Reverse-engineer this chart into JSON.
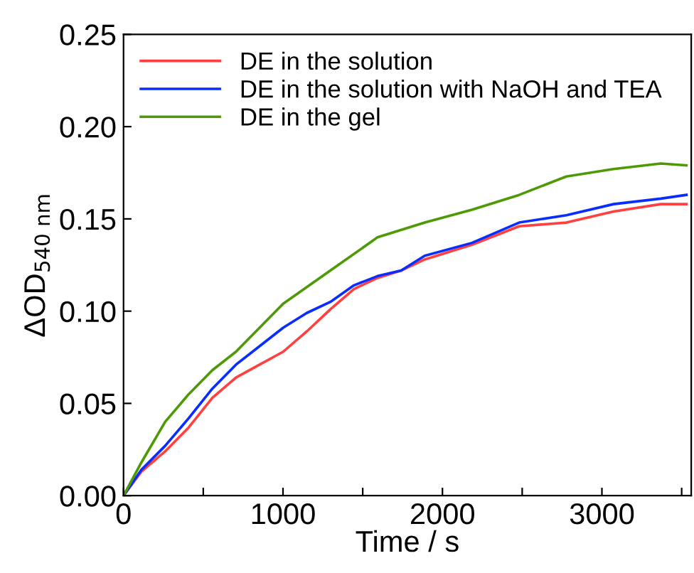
{
  "chart_data": {
    "type": "line",
    "xlabel": "Time / s",
    "ylabel": "ΔOD$_{540 nm}$",
    "xlim": [
      0,
      3560
    ],
    "ylim": [
      0,
      0.25
    ],
    "xticks": [
      0,
      {
        "value": 500,
        "label": null
      },
      1000,
      {
        "value": 1500,
        "label": null
      },
      2000,
      {
        "value": 2500,
        "label": null
      },
      3000,
      {
        "value": 3500,
        "label": null
      }
    ],
    "yticks": [
      {
        "value": 0,
        "label": "0.00"
      },
      0.05,
      {
        "value": 0.1,
        "label": "0.10"
      },
      0.15,
      {
        "value": 0.2,
        "label": "0.20"
      },
      0.25
    ],
    "grid": false,
    "legend": "top left",
    "marker": "none",
    "line_style": "solid",
    "series": [
      {
        "name": "DE in the solution",
        "color": "#ff4040",
        "x": [
          0,
          112,
          261,
          409,
          557,
          705,
          853,
          1001,
          1149,
          1297,
          1445,
          1593,
          1741,
          1889,
          2185,
          2481,
          2777,
          3073,
          3369,
          3530
        ],
        "values": [
          0,
          0.013,
          0.024,
          0.037,
          0.053,
          0.064,
          0.071,
          0.078,
          0.089,
          0.101,
          0.112,
          0.118,
          0.122,
          0.128,
          0.136,
          0.146,
          0.148,
          0.154,
          0.158,
          0.158
        ]
      },
      {
        "name": "DE in the solution with NaOH and TEA",
        "color": "#0a2dff",
        "x": [
          0,
          112,
          261,
          409,
          557,
          705,
          853,
          1001,
          1149,
          1297,
          1445,
          1593,
          1741,
          1889,
          2185,
          2481,
          2777,
          3073,
          3369,
          3530
        ],
        "values": [
          0,
          0.014,
          0.027,
          0.042,
          0.058,
          0.071,
          0.081,
          0.091,
          0.099,
          0.105,
          0.114,
          0.119,
          0.122,
          0.13,
          0.137,
          0.148,
          0.152,
          0.158,
          0.161,
          0.163
        ]
      },
      {
        "name": "DE in the gel",
        "color": "#4e9a06",
        "x": [
          0,
          112,
          261,
          409,
          557,
          705,
          1001,
          1297,
          1593,
          1889,
          2185,
          2481,
          2777,
          3073,
          3369,
          3530
        ],
        "values": [
          0,
          0.018,
          0.04,
          0.055,
          0.068,
          0.078,
          0.104,
          0.122,
          0.14,
          0.148,
          0.155,
          0.163,
          0.173,
          0.177,
          0.18,
          0.179
        ]
      }
    ]
  }
}
